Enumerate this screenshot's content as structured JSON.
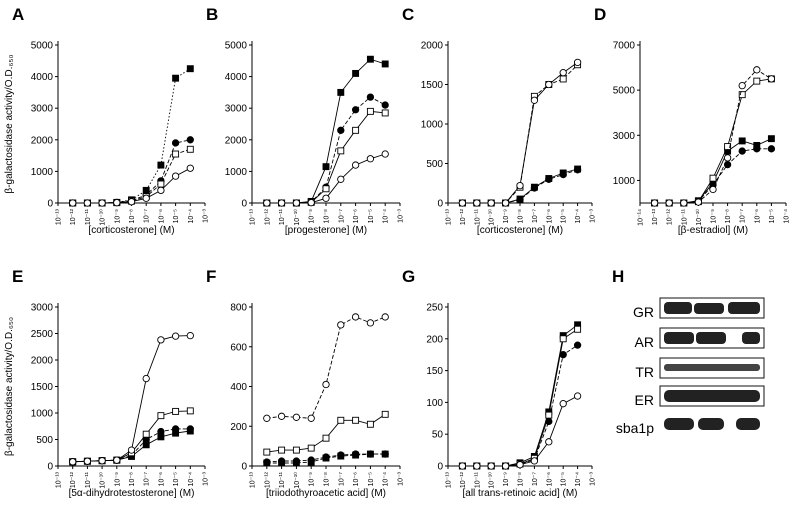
{
  "chart_data": [
    {
      "type": "line",
      "panel": "A",
      "ylabel": "β-galactosidase activity/O.D.₆₅₀",
      "xlabel": "[corticosterone] (M)",
      "log_x": true,
      "x": [
        1e-12,
        1e-11,
        1e-10,
        1e-09,
        1e-08,
        1e-07,
        1e-06,
        1e-05,
        0.0001
      ],
      "xlim": [
        1e-13,
        0.001
      ],
      "xticks": [
        {
          "value": 1e-13,
          "label": "10⁻¹³"
        },
        {
          "value": 1e-12,
          "label": "10⁻¹²"
        },
        {
          "value": 1e-11,
          "label": "10⁻¹¹"
        },
        {
          "value": 1e-10,
          "label": "10⁻¹⁰"
        },
        {
          "value": 1e-09,
          "label": "10⁻⁹"
        },
        {
          "value": 1e-08,
          "label": "10⁻⁸"
        },
        {
          "value": 1e-07,
          "label": "10⁻⁷"
        },
        {
          "value": 1e-06,
          "label": "10⁻⁶"
        },
        {
          "value": 1e-05,
          "label": "10⁻⁵"
        },
        {
          "value": 0.0001,
          "label": "10⁻⁴"
        },
        {
          "value": 0.001,
          "label": "10⁻³"
        }
      ],
      "ylim": [
        0,
        5000
      ],
      "yticks": [
        0,
        1000,
        2000,
        3000,
        4000,
        5000
      ],
      "series": [
        {
          "color": "#000000",
          "marker": "square",
          "filled": true,
          "dash": "dotted",
          "values": [
            0,
            0,
            0,
            20,
            100,
            400,
            1200,
            3950,
            4250
          ]
        },
        {
          "color": "#000000",
          "marker": "circle",
          "filled": true,
          "dash": "dashed",
          "values": [
            0,
            0,
            0,
            20,
            80,
            250,
            700,
            1900,
            2000
          ]
        },
        {
          "color": "#000000",
          "marker": "square",
          "filled": false,
          "dash": "dashed",
          "values": [
            0,
            0,
            0,
            10,
            60,
            200,
            600,
            1550,
            1700
          ]
        },
        {
          "color": "#000000",
          "marker": "circle",
          "filled": false,
          "dash": "solid",
          "values": [
            0,
            0,
            0,
            10,
            40,
            150,
            400,
            850,
            1100
          ]
        }
      ]
    },
    {
      "type": "line",
      "panel": "B",
      "xlabel": "[progesterone] (M)",
      "log_x": true,
      "x": [
        1e-12,
        1e-11,
        1e-10,
        1e-09,
        1e-08,
        1e-07,
        1e-06,
        1e-05,
        0.0001
      ],
      "xlim": [
        1e-13,
        0.001
      ],
      "xticks": [
        {
          "value": 1e-13,
          "label": "10⁻¹³"
        },
        {
          "value": 1e-12,
          "label": "10⁻¹²"
        },
        {
          "value": 1e-11,
          "label": "10⁻¹¹"
        },
        {
          "value": 1e-10,
          "label": "10⁻¹⁰"
        },
        {
          "value": 1e-09,
          "label": "10⁻⁹"
        },
        {
          "value": 1e-08,
          "label": "10⁻⁸"
        },
        {
          "value": 1e-07,
          "label": "10⁻⁷"
        },
        {
          "value": 1e-06,
          "label": "10⁻⁶"
        },
        {
          "value": 1e-05,
          "label": "10⁻⁵"
        },
        {
          "value": 0.0001,
          "label": "10⁻⁴"
        },
        {
          "value": 0.001,
          "label": "10⁻³"
        }
      ],
      "ylim": [
        0,
        5000
      ],
      "yticks": [
        0,
        1000,
        2000,
        3000,
        4000,
        5000
      ],
      "series": [
        {
          "color": "#000000",
          "marker": "square",
          "filled": true,
          "dash": "solid",
          "values": [
            0,
            0,
            0,
            50,
            1150,
            3500,
            4100,
            4550,
            4400
          ]
        },
        {
          "color": "#000000",
          "marker": "circle",
          "filled": true,
          "dash": "dashed",
          "values": [
            0,
            0,
            0,
            30,
            500,
            2300,
            2950,
            3350,
            3100
          ]
        },
        {
          "color": "#000000",
          "marker": "square",
          "filled": false,
          "dash": "solid",
          "values": [
            0,
            0,
            0,
            20,
            450,
            1650,
            2300,
            2900,
            2850
          ]
        },
        {
          "color": "#000000",
          "marker": "circle",
          "filled": false,
          "dash": "solid",
          "values": [
            0,
            0,
            0,
            10,
            150,
            750,
            1200,
            1400,
            1550
          ]
        }
      ]
    },
    {
      "type": "line",
      "panel": "C",
      "xlabel": "[corticosterone] (M)",
      "log_x": true,
      "x": [
        1e-12,
        1e-11,
        1e-10,
        1e-09,
        1e-08,
        1e-07,
        1e-06,
        1e-05,
        0.0001
      ],
      "xlim": [
        1e-13,
        0.001
      ],
      "xticks": [
        {
          "value": 1e-13,
          "label": "10⁻¹³"
        },
        {
          "value": 1e-12,
          "label": "10⁻¹²"
        },
        {
          "value": 1e-11,
          "label": "10⁻¹¹"
        },
        {
          "value": 1e-10,
          "label": "10⁻¹⁰"
        },
        {
          "value": 1e-09,
          "label": "10⁻⁹"
        },
        {
          "value": 1e-08,
          "label": "10⁻⁸"
        },
        {
          "value": 1e-07,
          "label": "10⁻⁷"
        },
        {
          "value": 1e-06,
          "label": "10⁻⁶"
        },
        {
          "value": 1e-05,
          "label": "10⁻⁵"
        },
        {
          "value": 0.0001,
          "label": "10⁻⁴"
        },
        {
          "value": 0.001,
          "label": "10⁻³"
        }
      ],
      "ylim": [
        0,
        2000
      ],
      "yticks": [
        0,
        500,
        1000,
        1500,
        2000
      ],
      "series": [
        {
          "color": "#000000",
          "marker": "square",
          "filled": true,
          "dash": "solid",
          "values": [
            0,
            0,
            0,
            0,
            50,
            200,
            310,
            380,
            430
          ]
        },
        {
          "color": "#000000",
          "marker": "circle",
          "filled": true,
          "dash": "dashed",
          "values": [
            0,
            0,
            0,
            0,
            40,
            190,
            300,
            360,
            420
          ]
        },
        {
          "color": "#000000",
          "marker": "square",
          "filled": false,
          "dash": "dashed",
          "values": [
            0,
            0,
            0,
            0,
            200,
            1350,
            1500,
            1570,
            1750
          ]
        },
        {
          "color": "#000000",
          "marker": "circle",
          "filled": false,
          "dash": "solid",
          "values": [
            0,
            0,
            0,
            0,
            220,
            1300,
            1500,
            1650,
            1780
          ]
        }
      ]
    },
    {
      "type": "line",
      "panel": "D",
      "xlabel": "[β-estradiol] (M)",
      "log_x": true,
      "x": [
        1e-13,
        1e-12,
        1e-11,
        1e-10,
        1e-09,
        1e-08,
        1e-07,
        1e-06,
        1e-05
      ],
      "xlim": [
        1e-14,
        0.0001
      ],
      "xticks": [
        {
          "value": 1e-14,
          "label": "10⁻¹⁴"
        },
        {
          "value": 1e-13,
          "label": "10⁻¹³"
        },
        {
          "value": 1e-12,
          "label": "10⁻¹²"
        },
        {
          "value": 1e-11,
          "label": "10⁻¹¹"
        },
        {
          "value": 1e-10,
          "label": "10⁻¹⁰"
        },
        {
          "value": 1e-09,
          "label": "10⁻⁹"
        },
        {
          "value": 1e-08,
          "label": "10⁻⁸"
        },
        {
          "value": 1e-07,
          "label": "10⁻⁷"
        },
        {
          "value": 1e-06,
          "label": "10⁻⁶"
        },
        {
          "value": 1e-05,
          "label": "10⁻⁵"
        },
        {
          "value": 0.0001,
          "label": "10⁻⁴"
        }
      ],
      "ylim": [
        0,
        7000
      ],
      "yticks": [
        1000,
        3000,
        5000,
        7000
      ],
      "series": [
        {
          "color": "#000000",
          "marker": "square",
          "filled": true,
          "dash": "solid",
          "values": [
            0,
            0,
            0,
            100,
            900,
            2300,
            2750,
            2550,
            2850
          ]
        },
        {
          "color": "#000000",
          "marker": "circle",
          "filled": true,
          "dash": "dashed",
          "values": [
            0,
            0,
            0,
            80,
            800,
            1700,
            2300,
            2400,
            2400
          ]
        },
        {
          "color": "#000000",
          "marker": "square",
          "filled": false,
          "dash": "solid",
          "values": [
            0,
            0,
            0,
            60,
            1100,
            2500,
            4800,
            5400,
            5500
          ]
        },
        {
          "color": "#000000",
          "marker": "circle",
          "filled": false,
          "dash": "dashed",
          "values": [
            0,
            0,
            0,
            40,
            600,
            2000,
            5200,
            5900,
            5500
          ]
        }
      ]
    },
    {
      "type": "line",
      "panel": "E",
      "ylabel": "β-galactosidase activity/O.D.₆₅₀",
      "xlabel": "[5α-dihydrotestosterone] (M)",
      "log_x": true,
      "x": [
        1e-12,
        1e-11,
        1e-10,
        1e-09,
        1e-08,
        1e-07,
        1e-06,
        1e-05,
        0.0001
      ],
      "xlim": [
        1e-13,
        0.001
      ],
      "xticks": [
        {
          "value": 1e-13,
          "label": "10⁻¹³"
        },
        {
          "value": 1e-12,
          "label": "10⁻¹²"
        },
        {
          "value": 1e-11,
          "label": "10⁻¹¹"
        },
        {
          "value": 1e-10,
          "label": "10⁻¹⁰"
        },
        {
          "value": 1e-09,
          "label": "10⁻⁹"
        },
        {
          "value": 1e-08,
          "label": "10⁻⁸"
        },
        {
          "value": 1e-07,
          "label": "10⁻⁷"
        },
        {
          "value": 1e-06,
          "label": "10⁻⁶"
        },
        {
          "value": 1e-05,
          "label": "10⁻⁵"
        },
        {
          "value": 0.0001,
          "label": "10⁻⁴"
        },
        {
          "value": 0.001,
          "label": "10⁻³"
        }
      ],
      "ylim": [
        0,
        3000
      ],
      "yticks": [
        0,
        500,
        1000,
        1500,
        2000,
        2500,
        3000
      ],
      "series": [
        {
          "color": "#000000",
          "marker": "square",
          "filled": true,
          "dash": "solid",
          "values": [
            80,
            90,
            100,
            110,
            180,
            400,
            550,
            620,
            660
          ]
        },
        {
          "color": "#000000",
          "marker": "circle",
          "filled": true,
          "dash": "dashed",
          "values": [
            80,
            90,
            100,
            110,
            200,
            500,
            650,
            700,
            700
          ]
        },
        {
          "color": "#000000",
          "marker": "square",
          "filled": false,
          "dash": "solid",
          "values": [
            80,
            90,
            100,
            110,
            250,
            600,
            950,
            1030,
            1040
          ]
        },
        {
          "color": "#000000",
          "marker": "circle",
          "filled": false,
          "dash": "solid",
          "values": [
            80,
            90,
            100,
            110,
            300,
            1650,
            2380,
            2450,
            2460
          ]
        }
      ]
    },
    {
      "type": "line",
      "panel": "F",
      "xlabel": "[triiodothyroacetic acid] (M)",
      "log_x": true,
      "x": [
        1e-12,
        1e-11,
        1e-10,
        1e-09,
        1e-08,
        1e-07,
        1e-06,
        1e-05,
        0.0001
      ],
      "xlim": [
        1e-13,
        0.001
      ],
      "xticks": [
        {
          "value": 1e-13,
          "label": "10⁻¹³"
        },
        {
          "value": 1e-12,
          "label": "10⁻¹²"
        },
        {
          "value": 1e-11,
          "label": "10⁻¹¹"
        },
        {
          "value": 1e-10,
          "label": "10⁻¹⁰"
        },
        {
          "value": 1e-09,
          "label": "10⁻⁹"
        },
        {
          "value": 1e-08,
          "label": "10⁻⁸"
        },
        {
          "value": 1e-07,
          "label": "10⁻⁷"
        },
        {
          "value": 1e-06,
          "label": "10⁻⁶"
        },
        {
          "value": 1e-05,
          "label": "10⁻⁵"
        },
        {
          "value": 0.0001,
          "label": "10⁻⁴"
        },
        {
          "value": 0.001,
          "label": "10⁻³"
        }
      ],
      "ylim": [
        0,
        800
      ],
      "yticks": [
        0,
        200,
        400,
        600,
        800
      ],
      "series": [
        {
          "color": "#000000",
          "marker": "square",
          "filled": true,
          "dash": "dashed",
          "values": [
            15,
            15,
            15,
            20,
            40,
            50,
            55,
            60,
            60
          ]
        },
        {
          "color": "#000000",
          "marker": "circle",
          "filled": true,
          "dash": "dashed",
          "values": [
            20,
            25,
            25,
            30,
            45,
            55,
            60,
            60,
            60
          ]
        },
        {
          "color": "#000000",
          "marker": "square",
          "filled": false,
          "dash": "solid",
          "values": [
            70,
            80,
            80,
            90,
            140,
            230,
            230,
            210,
            260
          ]
        },
        {
          "color": "#000000",
          "marker": "circle",
          "filled": false,
          "dash": "dashed",
          "values": [
            240,
            250,
            245,
            240,
            410,
            710,
            750,
            720,
            750
          ]
        }
      ]
    },
    {
      "type": "line",
      "panel": "G",
      "xlabel": "[all trans-retinoic acid] (M)",
      "log_x": true,
      "x": [
        1e-12,
        1e-11,
        1e-10,
        1e-09,
        1e-08,
        1e-07,
        1e-06,
        1e-05,
        0.0001
      ],
      "xlim": [
        1e-13,
        0.001
      ],
      "xticks": [
        {
          "value": 1e-13,
          "label": "10⁻¹³"
        },
        {
          "value": 1e-12,
          "label": "10⁻¹²"
        },
        {
          "value": 1e-11,
          "label": "10⁻¹¹"
        },
        {
          "value": 1e-10,
          "label": "10⁻¹⁰"
        },
        {
          "value": 1e-09,
          "label": "10⁻⁹"
        },
        {
          "value": 1e-08,
          "label": "10⁻⁸"
        },
        {
          "value": 1e-07,
          "label": "10⁻⁷"
        },
        {
          "value": 1e-06,
          "label": "10⁻⁶"
        },
        {
          "value": 1e-05,
          "label": "10⁻⁵"
        },
        {
          "value": 0.0001,
          "label": "10⁻⁴"
        },
        {
          "value": 0.001,
          "label": "10⁻³"
        }
      ],
      "ylim": [
        0,
        250
      ],
      "yticks": [
        0,
        50,
        100,
        150,
        200,
        250
      ],
      "series": [
        {
          "color": "#000000",
          "marker": "square",
          "filled": true,
          "dash": "solid",
          "values": [
            0,
            0,
            0,
            0,
            5,
            15,
            85,
            205,
            222
          ]
        },
        {
          "color": "#000000",
          "marker": "circle",
          "filled": true,
          "dash": "dashed",
          "values": [
            0,
            0,
            0,
            0,
            3,
            10,
            70,
            175,
            190
          ]
        },
        {
          "color": "#000000",
          "marker": "square",
          "filled": false,
          "dash": "solid",
          "values": [
            0,
            0,
            0,
            0,
            3,
            12,
            80,
            200,
            215
          ]
        },
        {
          "color": "#000000",
          "marker": "circle",
          "filled": false,
          "dash": "solid",
          "values": [
            0,
            0,
            0,
            0,
            2,
            8,
            38,
            98,
            110
          ]
        }
      ]
    }
  ],
  "blot": {
    "panel": "H",
    "rows": [
      "GR",
      "AR",
      "TR",
      "ER",
      "sba1p"
    ]
  }
}
